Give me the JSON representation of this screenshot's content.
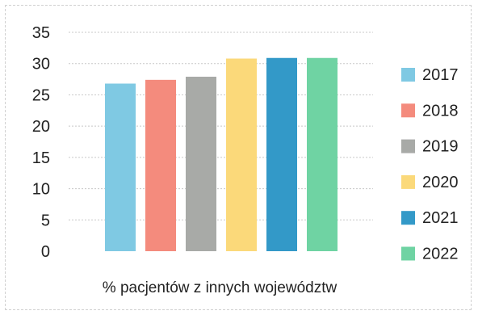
{
  "chart_data": {
    "type": "bar",
    "title": "",
    "xlabel": "% pacjentów z innych województw",
    "ylabel": "",
    "ylim": [
      0,
      35
    ],
    "yticks": [
      0,
      5,
      10,
      15,
      20,
      25,
      30,
      35
    ],
    "grid": true,
    "legend_position": "right",
    "categories": [
      "% pacjentów z innych województw"
    ],
    "series": [
      {
        "name": "2017",
        "values": [
          26.8
        ],
        "color": "#7fc9e3"
      },
      {
        "name": "2018",
        "values": [
          27.4
        ],
        "color": "#f48b7d"
      },
      {
        "name": "2019",
        "values": [
          27.9
        ],
        "color": "#a8aaa7"
      },
      {
        "name": "2020",
        "values": [
          30.8
        ],
        "color": "#fbd97a"
      },
      {
        "name": "2021",
        "values": [
          30.9
        ],
        "color": "#3399c8"
      },
      {
        "name": "2022",
        "values": [
          30.9
        ],
        "color": "#6fd3a3"
      }
    ]
  }
}
